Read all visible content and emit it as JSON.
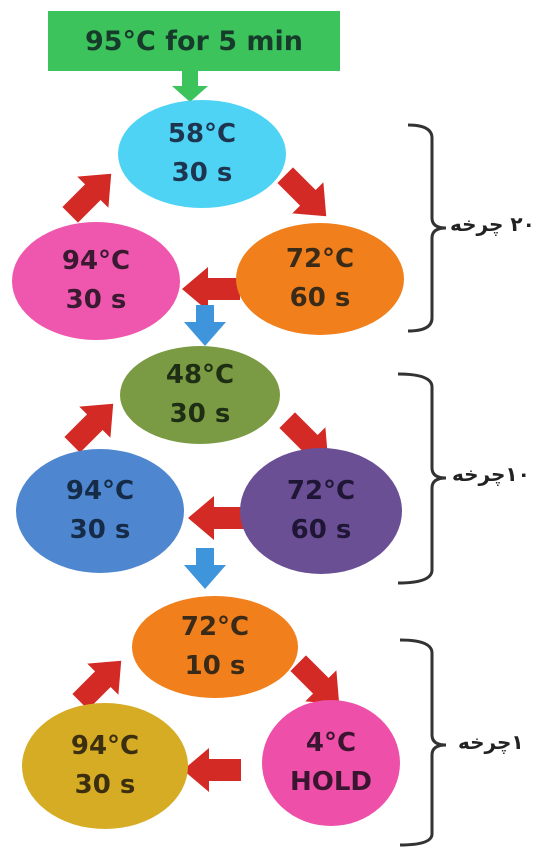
{
  "initial_step": {
    "text": "95°C for 5 min",
    "color": "#3cc35c"
  },
  "cycles": [
    {
      "label": "۲۰ چرخه",
      "steps": [
        {
          "temp": "58°C",
          "time": "30 s",
          "color": "#4ed3f4",
          "text_color": "#1e3550"
        },
        {
          "temp": "72°C",
          "time": "60 s",
          "color": "#f07f1c",
          "text_color": "#3a2a18"
        },
        {
          "temp": "94°C",
          "time": "30 s",
          "color": "#ee57ad",
          "text_color": "#3a1a30"
        }
      ]
    },
    {
      "label": "۱۰چرخه",
      "steps": [
        {
          "temp": "48°C",
          "time": "30 s",
          "color": "#7a9b43",
          "text_color": "#1e2e14"
        },
        {
          "temp": "72°C",
          "time": "60 s",
          "color": "#6b4f95",
          "text_color": "#1f1535"
        },
        {
          "temp": "94°C",
          "time": "30 s",
          "color": "#4e87cf",
          "text_color": "#152b48"
        }
      ]
    },
    {
      "label": "۱چرخه",
      "steps": [
        {
          "temp": "72°C",
          "time": "10 s",
          "color": "#f07f1c",
          "text_color": "#3a2a18"
        },
        {
          "temp": "4°C",
          "time": "HOLD",
          "color": "#ee4fa8",
          "text_color": "#3a1530"
        },
        {
          "temp": "94°C",
          "time": "30 s",
          "color": "#d6ac24",
          "text_color": "#3b2f10"
        }
      ]
    }
  ],
  "colors": {
    "red_arrow": "#d42a25",
    "blue_arrow": "#3e95dc",
    "green_arrow": "#3cc35c",
    "bracket": "#333333"
  }
}
